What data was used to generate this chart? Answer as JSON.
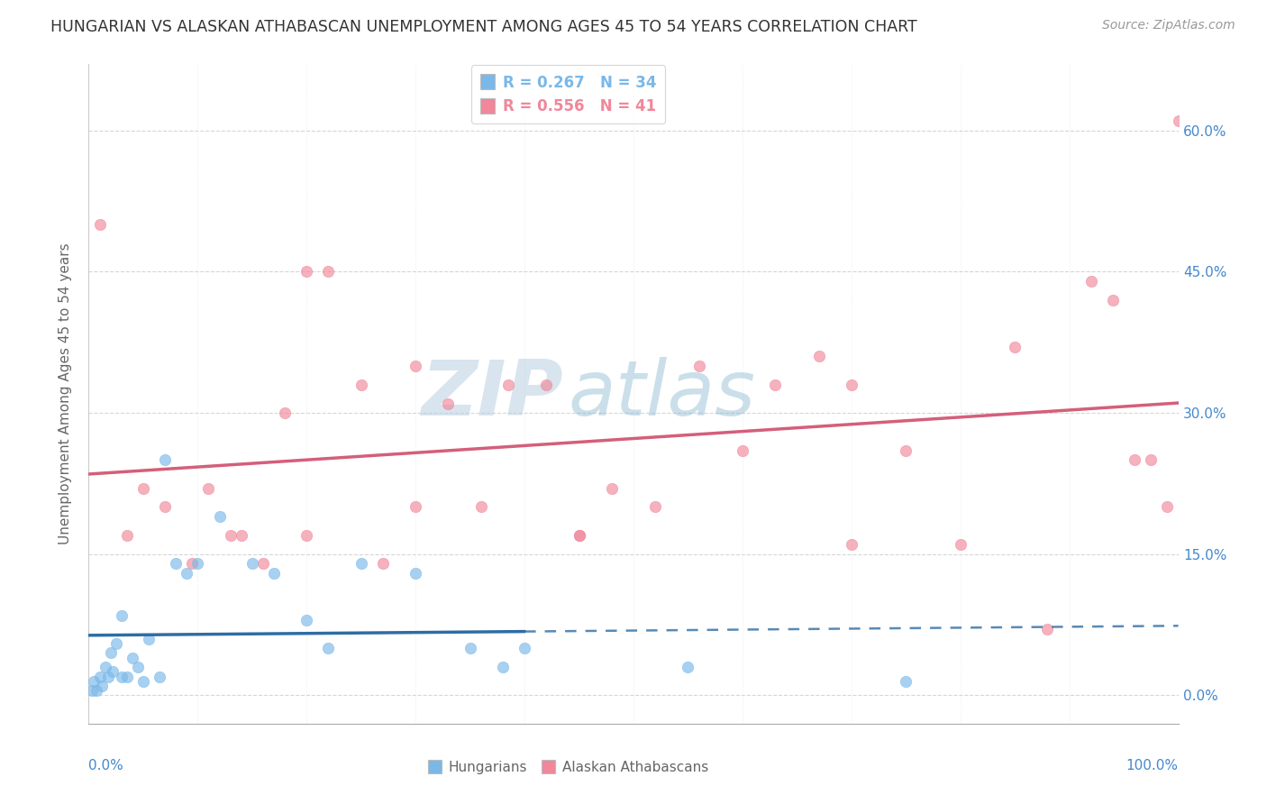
{
  "title": "HUNGARIAN VS ALASKAN ATHABASCAN UNEMPLOYMENT AMONG AGES 45 TO 54 YEARS CORRELATION CHART",
  "source": "Source: ZipAtlas.com",
  "ylabel": "Unemployment Among Ages 45 to 54 years",
  "ytick_vals": [
    0,
    15,
    30,
    45,
    60
  ],
  "ytick_labels": [
    "0.0%",
    "15.0%",
    "30.0%",
    "45.0%",
    "60.0%"
  ],
  "xlim": [
    0,
    100
  ],
  "ylim": [
    -3,
    67
  ],
  "watermark_zip": "ZIP",
  "watermark_atlas": "atlas",
  "legend_r_items": [
    {
      "label": "R = 0.267   N = 34",
      "color": "#7ab8e8"
    },
    {
      "label": "R = 0.556   N = 41",
      "color": "#f0879a"
    }
  ],
  "hungarian_scatter_x": [
    0.3,
    0.5,
    0.7,
    1.0,
    1.2,
    1.5,
    1.8,
    2.0,
    2.2,
    2.5,
    3.0,
    3.0,
    3.5,
    4.0,
    4.5,
    5.0,
    5.5,
    6.5,
    7.0,
    8.0,
    9.0,
    10.0,
    12.0,
    15.0,
    17.0,
    20.0,
    22.0,
    25.0,
    30.0,
    35.0,
    38.0,
    40.0,
    55.0,
    75.0
  ],
  "hungarian_scatter_y": [
    0.5,
    1.5,
    0.5,
    2.0,
    1.0,
    3.0,
    2.0,
    4.5,
    2.5,
    5.5,
    2.0,
    8.5,
    2.0,
    4.0,
    3.0,
    1.5,
    6.0,
    2.0,
    25.0,
    14.0,
    13.0,
    14.0,
    19.0,
    14.0,
    13.0,
    8.0,
    5.0,
    14.0,
    13.0,
    5.0,
    3.0,
    5.0,
    3.0,
    1.5
  ],
  "athabascan_scatter_x": [
    1.0,
    3.5,
    5.0,
    7.0,
    9.5,
    11.0,
    13.0,
    14.0,
    16.0,
    18.0,
    20.0,
    22.0,
    25.0,
    27.0,
    30.0,
    33.0,
    36.0,
    38.5,
    42.0,
    45.0,
    48.0,
    52.0,
    56.0,
    60.0,
    63.0,
    67.0,
    70.0,
    75.0,
    80.0,
    85.0,
    88.0,
    92.0,
    94.0,
    96.0,
    97.5,
    99.0,
    100.0,
    20.0,
    45.0,
    70.0,
    30.0
  ],
  "athabascan_scatter_y": [
    50.0,
    17.0,
    22.0,
    20.0,
    14.0,
    22.0,
    17.0,
    17.0,
    14.0,
    30.0,
    45.0,
    45.0,
    33.0,
    14.0,
    35.0,
    31.0,
    20.0,
    33.0,
    33.0,
    17.0,
    22.0,
    20.0,
    35.0,
    26.0,
    33.0,
    36.0,
    16.0,
    26.0,
    16.0,
    37.0,
    7.0,
    44.0,
    42.0,
    25.0,
    25.0,
    20.0,
    61.0,
    17.0,
    17.0,
    33.0,
    20.0
  ],
  "hungarian_scatter_color": "#7ab8e8",
  "athabascan_scatter_color": "#f0879a",
  "hungarian_line_color": "#2e6da4",
  "athabascan_line_color": "#d45f7a",
  "hungarian_solid_end_x": 40.0,
  "grid_color": "#cccccc",
  "background_color": "#ffffff",
  "title_fontsize": 12.5,
  "source_fontsize": 10,
  "axis_label_fontsize": 11,
  "tick_label_fontsize": 11,
  "scatter_size": 80,
  "scatter_alpha": 0.65,
  "legend_bottom_items": [
    {
      "label": "Hungarians",
      "color": "#7ab8e8"
    },
    {
      "label": "Alaskan Athabascans",
      "color": "#f0879a"
    }
  ]
}
